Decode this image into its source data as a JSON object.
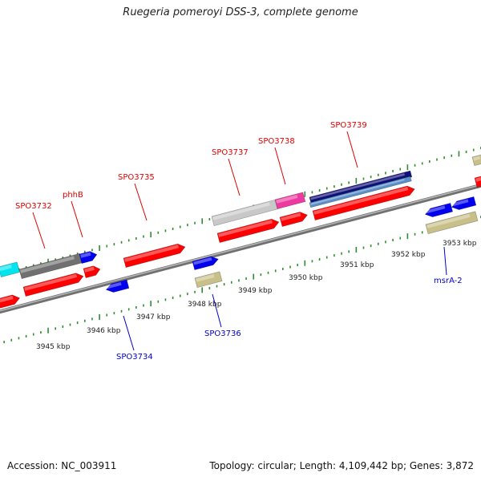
{
  "title": "Ruegeria pomeroyi DSS-3, complete genome",
  "footer": {
    "accession": "Accession: NC_003911",
    "summary": "Topology: circular; Length: 4,109,442 bp; Genes: 3,872"
  },
  "colors": {
    "backbone": "#8c8c8c",
    "tick": "#2e8b2e",
    "ruler_label": "#222222",
    "label_top": "#e00000",
    "label_bottom": "#0000cc"
  },
  "ruler_labels": [
    "3945 kbp",
    "3946 kbp",
    "3947 kbp",
    "3948 kbp",
    "3949 kbp",
    "3950 kbp",
    "3951 kbp",
    "3952 kbp",
    "3953 kbp"
  ],
  "gene_labels_top": [
    "SPO3732",
    "phhB",
    "SPO3735",
    "SPO3737",
    "SPO3738",
    "SPO3739"
  ],
  "gene_labels_bottom": [
    "SPO3734",
    "SPO3736",
    "msrA-2"
  ],
  "features": [
    {
      "id": "f1",
      "color": "#00e5ee"
    },
    {
      "id": "f2",
      "color": "#707070"
    },
    {
      "id": "f3",
      "color": "#0000ee"
    },
    {
      "id": "f4",
      "color": "#c8c8c8"
    },
    {
      "id": "f5",
      "color": "#ee3aa0"
    },
    {
      "id": "f6",
      "color": "#10107a"
    },
    {
      "id": "f7",
      "color": "#5a8fc8"
    },
    {
      "id": "f8",
      "color": "#c8c088"
    },
    {
      "id": "f9",
      "color": "#ff0000"
    }
  ]
}
